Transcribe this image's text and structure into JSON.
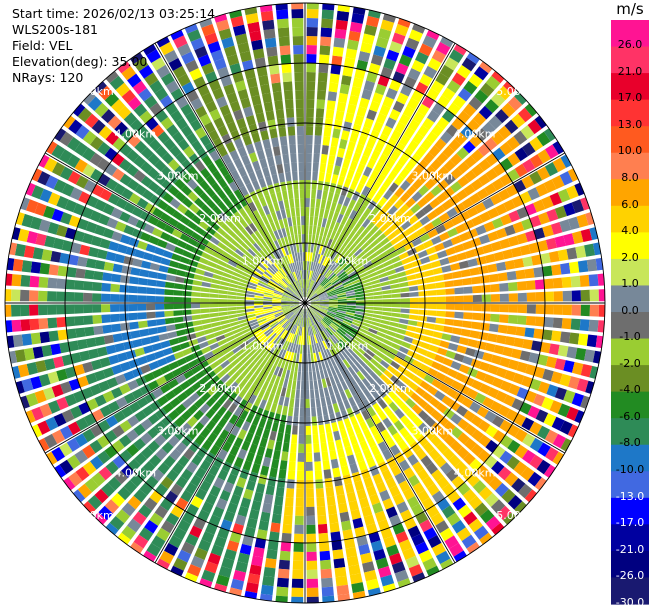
{
  "info": {
    "start_time": "Start time: 2026/02/13 03:25:14",
    "instrument": "WLS200s-181",
    "field": "Field: VEL",
    "elevation": "Elevation(deg): 35.00",
    "nrays": "NRays: 120"
  },
  "colorbar": {
    "unit": "m/s",
    "ticks": [
      "26.0",
      "21.0",
      "17.0",
      "13.0",
      "10.0",
      "8.0",
      "6.0",
      "4.0",
      "2.0",
      "1.0",
      "0.0",
      "-1.0",
      "-2.0",
      "-4.0",
      "-6.0",
      "-8.0",
      "-10.0",
      "-13.0",
      "-17.0",
      "-21.0",
      "-26.0",
      "-30.0"
    ],
    "colors": [
      "#ff1493",
      "#ff3366",
      "#e8002b",
      "#ff3333",
      "#ff5a1f",
      "#ff7f50",
      "#ffa500",
      "#ffd200",
      "#ffff00",
      "#c8e65a",
      "#778899",
      "#6e6e6e",
      "#9acd32",
      "#6b8e23",
      "#228b22",
      "#2e8b57",
      "#1e78c8",
      "#4169e1",
      "#0000ff",
      "#0000a0",
      "#000080",
      "#191970"
    ]
  },
  "chart_data": {
    "type": "polar-ppi",
    "field": "VEL",
    "units": "m/s",
    "elevation_deg": 35.0,
    "nrays": 120,
    "range_max_km": 5.0,
    "range_rings_km": [
      1,
      2,
      3,
      4,
      5
    ],
    "range_ring_labels": [
      "1.00km",
      "2.00km",
      "3.00km",
      "4.00km",
      "5.00km"
    ],
    "spokes_deg": [
      0,
      30,
      60,
      90,
      120,
      150,
      180,
      210,
      240,
      270,
      300,
      330
    ],
    "colorbar_min": -30.0,
    "colorbar_max": 26.0
  }
}
